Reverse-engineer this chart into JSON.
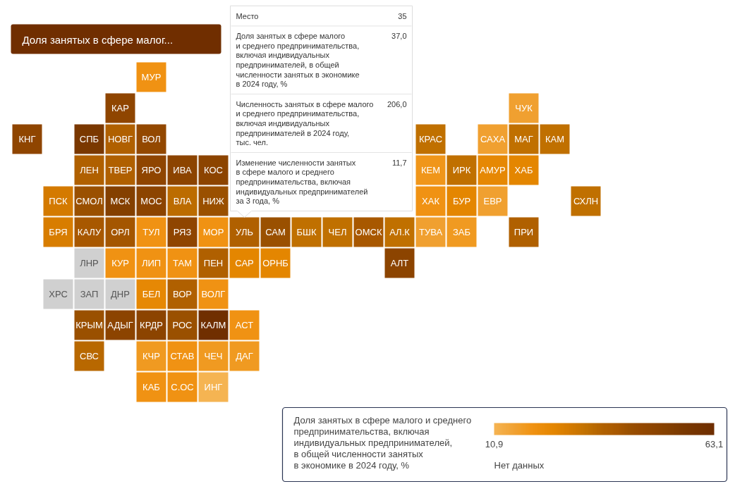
{
  "chart_data": {
    "type": "heatmap",
    "title": "Доля занятых в сфере малог...",
    "clabel": "Доля занятых в сфере малого и среднего\nпредпринимательства, включая\nиндивидуальных предпринимателей,\nв общей численности занятых\nв экономике в 2024 году, %",
    "annotations": [
      "Место",
      "35",
      "Доля занятых в сфере малого\nи среднего предпринимательства,\nвключая индивидуальных\nпредпринимателей, в общей\nчисленности занятых в экономике\nв 2024 году, %",
      "37,0",
      "Численность занятых в сфере малого\nи среднего предпринимательства,\nвключая индивидуальных\nпредпринимателей в 2024 году,\nтыс. чел.",
      "206,0",
      "Изменение численности занятых\nв сфере малого и среднего\nпредпринимательства, включая\nиндивидуальных предпринимателей\nза 3 года, %",
      "11,7",
      "Нет данных"
    ],
    "categories": [
      null,
      null,
      null,
      null,
      null,
      null,
      null,
      null,
      null,
      null,
      null,
      null,
      null,
      null,
      null,
      null,
      null,
      null,
      null
    ],
    "y_categories": [
      null,
      null,
      null,
      null,
      null,
      null,
      null,
      null,
      null,
      null,
      null
    ],
    "cells": [
      [
        null,
        null,
        null,
        null,
        20,
        null,
        null,
        null,
        null,
        null,
        null,
        null,
        null,
        null,
        null,
        null,
        null,
        null,
        null
      ],
      [
        null,
        null,
        null,
        48,
        null,
        null,
        null,
        null,
        null,
        null,
        null,
        null,
        null,
        null,
        null,
        null,
        16,
        null,
        null
      ],
      [
        48,
        null,
        56,
        37,
        46,
        null,
        null,
        null,
        null,
        null,
        null,
        null,
        null,
        33,
        null,
        16,
        33,
        33,
        null
      ],
      [
        null,
        null,
        37,
        37,
        48,
        49,
        49,
        null,
        null,
        null,
        null,
        null,
        null,
        19,
        33,
        24,
        25,
        null,
        null
      ],
      [
        null,
        29,
        43,
        52,
        49,
        34,
        43,
        null,
        null,
        null,
        null,
        null,
        null,
        20,
        25,
        16,
        null,
        null,
        33
      ],
      [
        null,
        28,
        40,
        41,
        20,
        48,
        20,
        37.0,
        43,
        33,
        33,
        40,
        33,
        16,
        18,
        null,
        37,
        null,
        null
      ],
      [
        null,
        null,
        null,
        20,
        20,
        20,
        37,
        25,
        25,
        null,
        null,
        null,
        49,
        null,
        null,
        null,
        null,
        null,
        null
      ],
      [
        null,
        null,
        null,
        null,
        24,
        37,
        20,
        null,
        null,
        null,
        null,
        null,
        null,
        null,
        null,
        null,
        null,
        null,
        null
      ],
      [
        null,
        null,
        43,
        49,
        49,
        43,
        62,
        20,
        null,
        null,
        null,
        null,
        null,
        null,
        null,
        null,
        null,
        null,
        null
      ],
      [
        null,
        null,
        35,
        null,
        18,
        20,
        18,
        18,
        null,
        null,
        null,
        null,
        null,
        null,
        null,
        null,
        null,
        null,
        null
      ],
      [
        null,
        null,
        null,
        null,
        20,
        20,
        11,
        null,
        null,
        null,
        null,
        null,
        null,
        null,
        null,
        null,
        null,
        null,
        null
      ]
    ],
    "cell_labels": [
      [
        null,
        null,
        null,
        null,
        "МУР",
        null,
        null,
        null,
        null,
        null,
        null,
        null,
        null,
        null,
        null,
        null,
        null,
        null,
        null
      ],
      [
        null,
        null,
        null,
        "КАР",
        null,
        null,
        null,
        null,
        null,
        null,
        null,
        null,
        null,
        null,
        null,
        null,
        "ЧУК",
        null,
        null
      ],
      [
        "КНГ",
        null,
        "СПБ",
        "НОВГ",
        "ВОЛ",
        null,
        null,
        null,
        null,
        null,
        null,
        null,
        null,
        "КРАС",
        null,
        "САХА",
        "МАГ",
        "КАМ",
        null
      ],
      [
        null,
        null,
        "ЛЕН",
        "ТВЕР",
        "ЯРО",
        "ИВА",
        "КОС",
        null,
        null,
        null,
        null,
        null,
        null,
        "КЕМ",
        "ИРК",
        "АМУР",
        "ХАБ",
        null,
        null
      ],
      [
        null,
        "ПСК",
        "СМОЛ",
        "МСК",
        "МОС",
        "ВЛА",
        "НИЖ",
        null,
        null,
        null,
        null,
        null,
        null,
        "ХАК",
        "БУР",
        "ЕВР",
        null,
        null,
        "СХЛН"
      ],
      [
        null,
        "БРЯ",
        "КАЛУ",
        "ОРЛ",
        "ТУЛ",
        "РЯЗ",
        "МОР",
        "УЛЬ",
        "САМ",
        "БШК",
        "ЧЕЛ",
        "ОМСК",
        "АЛ.К",
        "ТУВА",
        "ЗАБ",
        null,
        "ПРИ",
        null,
        null
      ],
      [
        null,
        null,
        "ЛНР",
        "КУР",
        "ЛИП",
        "ТАМ",
        "ПЕН",
        "САР",
        "ОРНБ",
        null,
        null,
        null,
        "АЛТ",
        null,
        null,
        null,
        null,
        null,
        null
      ],
      [
        null,
        "ХРС",
        "ЗАП",
        "ДНР",
        "БЕЛ",
        "ВОР",
        "ВОЛГ",
        null,
        null,
        null,
        null,
        null,
        null,
        null,
        null,
        null,
        null,
        null,
        null
      ],
      [
        null,
        null,
        "КРЫМ",
        "АДЫГ",
        "КРДР",
        "РОС",
        "КАЛМ",
        "АСТ",
        null,
        null,
        null,
        null,
        null,
        null,
        null,
        null,
        null,
        null,
        null
      ],
      [
        null,
        null,
        "СВС",
        null,
        "КЧР",
        "СТАВ",
        "ЧЕЧ",
        "ДАГ",
        null,
        null,
        null,
        null,
        null,
        null,
        null,
        null,
        null,
        null,
        null
      ],
      [
        null,
        null,
        null,
        null,
        "КАБ",
        "С.ОС",
        "ИНГ",
        null,
        null,
        null,
        null,
        null,
        null,
        null,
        null,
        null,
        null,
        null,
        null
      ]
    ],
    "clim": [
      10.9,
      63.1
    ],
    "cticks": [
      {
        "value": 10.9,
        "label": "10,9"
      },
      {
        "value": 63.1,
        "label": "63,1"
      }
    ]
  }
}
